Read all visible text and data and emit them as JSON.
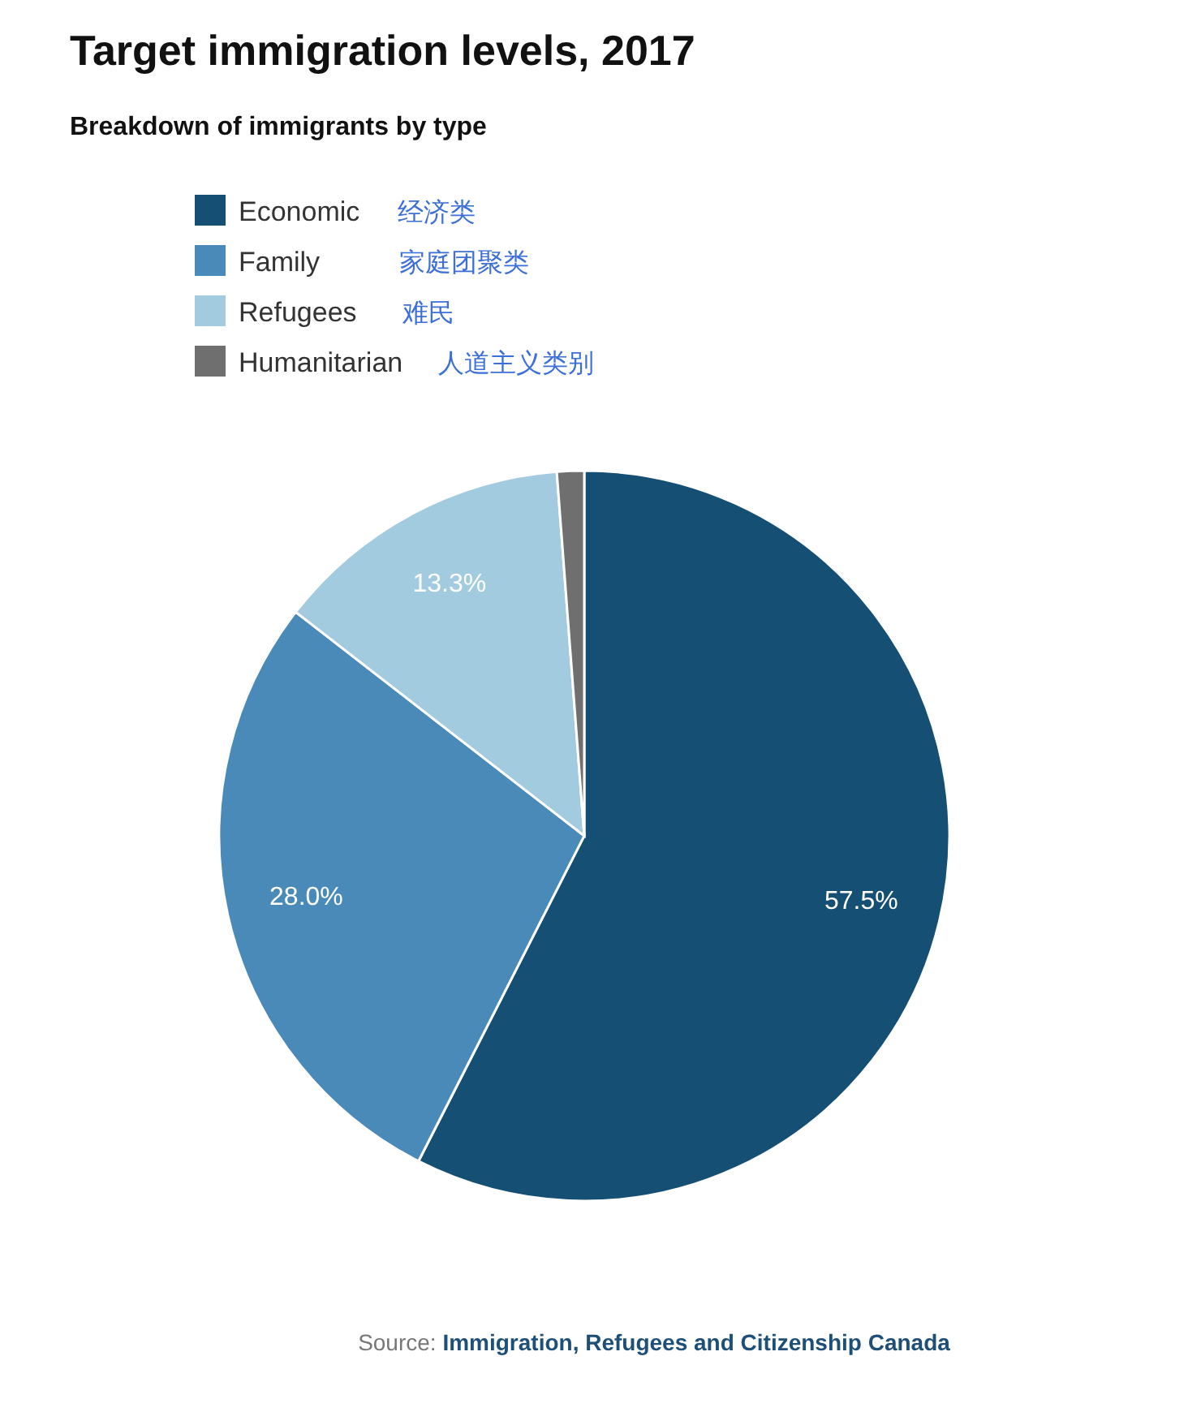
{
  "chart_data": {
    "type": "pie",
    "title": "Target immigration levels, 2017",
    "subtitle": "Breakdown of immigrants by type",
    "categories": [
      "Economic",
      "Family",
      "Refugees",
      "Humanitarian"
    ],
    "values": [
      57.5,
      28.0,
      13.3,
      1.2
    ],
    "colors": [
      "#164f74",
      "#4a8ab8",
      "#a3cbe0",
      "#6f6f6f"
    ],
    "value_labels": [
      "57.5%",
      "28.0%",
      "13.3%",
      null
    ],
    "legend": "top left",
    "annotations": [
      "经济类",
      "家庭团聚类",
      "难民",
      "人道主义类别",
      "Source: Immigration, Refugees and Citizenship Canada"
    ]
  }
}
